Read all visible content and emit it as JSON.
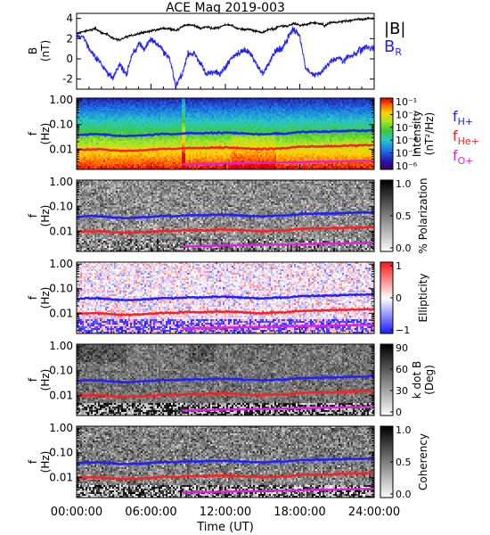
{
  "chart_data": {
    "title": "ACE Mag 2019-003",
    "xlabel": "Time (UT)",
    "x_ticks": [
      "00:00:00",
      "06:00:00",
      "12:00:00",
      "18:00:00",
      "24:00:00"
    ],
    "x_range_hours": [
      0,
      24
    ],
    "panels": [
      {
        "type": "line",
        "ylabel": "B (nT)",
        "ylim": [
          -3,
          4.5
        ],
        "y_ticks": [
          "4",
          "2",
          "0",
          "-2"
        ],
        "series": [
          {
            "name": "|B|",
            "color": "#000000",
            "x": [
              0,
              0.5,
              1,
              1.5,
              2,
              2.5,
              3,
              3.5,
              4,
              4.5,
              5,
              5.5,
              6,
              6.5,
              7,
              7.5,
              8,
              8.5,
              9,
              9.5,
              10,
              10.5,
              11,
              11.5,
              12,
              12.5,
              13,
              13.5,
              14,
              14.5,
              15,
              15.5,
              16,
              16.5,
              17,
              17.5,
              18,
              18.5,
              19,
              19.5,
              20,
              20.5,
              21,
              21.5,
              22,
              22.5,
              23,
              23.5,
              24
            ],
            "y": [
              2.5,
              2.7,
              2.8,
              3.0,
              2.6,
              2.4,
              2.0,
              1.9,
              2.2,
              2.3,
              2.5,
              2.6,
              2.8,
              2.9,
              3.0,
              3.0,
              2.8,
              3.2,
              3.4,
              3.3,
              3.0,
              3.2,
              3.0,
              3.1,
              3.4,
              3.3,
              3.0,
              2.9,
              2.9,
              2.7,
              2.6,
              2.9,
              3.0,
              3.3,
              3.2,
              3.5,
              3.3,
              3.4,
              3.6,
              3.5,
              3.3,
              3.6,
              3.6,
              3.7,
              3.8,
              3.9,
              3.9,
              4.0,
              4.0
            ]
          },
          {
            "name": "B_R",
            "color": "#1f1fff",
            "x": [
              0,
              0.5,
              1,
              1.5,
              2,
              2.5,
              3,
              3.5,
              4,
              4.5,
              5,
              5.5,
              6,
              6.5,
              7,
              7.5,
              8,
              8.5,
              9,
              9.5,
              10,
              10.5,
              11,
              11.5,
              12,
              12.5,
              13,
              13.5,
              14,
              14.5,
              15,
              15.5,
              16,
              16.5,
              17,
              17.5,
              18,
              18.5,
              19,
              19.5,
              20,
              20.5,
              21,
              21.5,
              22,
              22.5,
              23,
              23.5,
              24
            ],
            "y": [
              2.2,
              2.3,
              1.0,
              0.2,
              -0.5,
              -1.5,
              -1.8,
              -0.5,
              -1.6,
              0.5,
              1.5,
              1.0,
              2.0,
              1.5,
              0.8,
              0.0,
              -2.7,
              -1.5,
              0.5,
              0.5,
              -0.5,
              -1.5,
              -1.3,
              -1.5,
              -0.8,
              0.0,
              0.5,
              1.0,
              0.5,
              -0.5,
              -1.5,
              -0.5,
              0.8,
              0.9,
              2.0,
              3.0,
              2.2,
              -1.0,
              -1.5,
              -1.5,
              -1.0,
              -0.3,
              0.0,
              -0.2,
              0.3,
              0.5,
              1.0,
              1.2,
              1.0
            ]
          }
        ]
      },
      {
        "type": "heatmap",
        "ylabel": "f (Hz)",
        "y_ticks": [
          "1.00",
          "0.10",
          "0.01"
        ],
        "colorbar": {
          "label": "Intensity (nT²/Hz)",
          "ticks": [
            "10⁻¹",
            "10⁻²",
            "10⁻³",
            "10⁻⁴",
            "10⁻⁵",
            "10⁻⁶"
          ],
          "scheme": "rainbow"
        }
      },
      {
        "type": "heatmap",
        "ylabel": "f (Hz)",
        "y_ticks": [
          "1.00",
          "0.10",
          "0.01"
        ],
        "colorbar": {
          "label": "% Polarization",
          "ticks": [
            "1.0",
            "0.5",
            "0.0"
          ],
          "scheme": "gray"
        }
      },
      {
        "type": "heatmap",
        "ylabel": "f (Hz)",
        "y_ticks": [
          "1.00",
          "0.10",
          "0.01"
        ],
        "colorbar": {
          "label": "Ellipticity",
          "ticks": [
            "1",
            "0",
            "−1"
          ],
          "scheme": "bwr"
        }
      },
      {
        "type": "heatmap",
        "ylabel": "f (Hz)",
        "y_ticks": [
          "1.00",
          "0.10",
          "0.01"
        ],
        "colorbar": {
          "label": "k dot B (Deg)",
          "ticks": [
            "90",
            "60",
            "30",
            "0"
          ],
          "scheme": "gray"
        }
      },
      {
        "type": "heatmap",
        "ylabel": "f (Hz)",
        "y_ticks": [
          "1.00",
          "0.10",
          "0.01"
        ],
        "colorbar": {
          "label": "Coherency",
          "ticks": [
            "1.0",
            "0.5",
            "0.0"
          ],
          "scheme": "gray"
        }
      }
    ],
    "gyrofrequency_lines": {
      "legend": [
        "fH+",
        "fHe+",
        "fO+"
      ],
      "colors": {
        "H+": "#1f1fff",
        "He+": "#ff1f1f",
        "O+": "#e020e0"
      },
      "x": [
        0,
        1,
        2,
        3,
        4,
        5,
        6,
        7,
        8,
        9,
        10,
        11,
        12,
        13,
        14,
        15,
        16,
        17,
        18,
        19,
        20,
        21,
        22,
        23,
        24
      ],
      "H+": [
        0.037,
        0.041,
        0.04,
        0.036,
        0.034,
        0.036,
        0.038,
        0.042,
        0.041,
        0.045,
        0.044,
        0.046,
        0.047,
        0.045,
        0.042,
        0.04,
        0.043,
        0.044,
        0.05,
        0.051,
        0.052,
        0.054,
        0.056,
        0.057,
        0.059
      ],
      "He+": [
        0.0093,
        0.01,
        0.0099,
        0.009,
        0.0085,
        0.009,
        0.0095,
        0.0105,
        0.0102,
        0.0112,
        0.011,
        0.0115,
        0.0117,
        0.0112,
        0.0105,
        0.01,
        0.0107,
        0.011,
        0.0125,
        0.0128,
        0.013,
        0.0135,
        0.014,
        0.0143,
        0.0147
      ],
      "O+": {
        "x": [
          8.5,
          24
        ],
        "y": [
          0.0024,
          0.0034
        ]
      }
    }
  }
}
